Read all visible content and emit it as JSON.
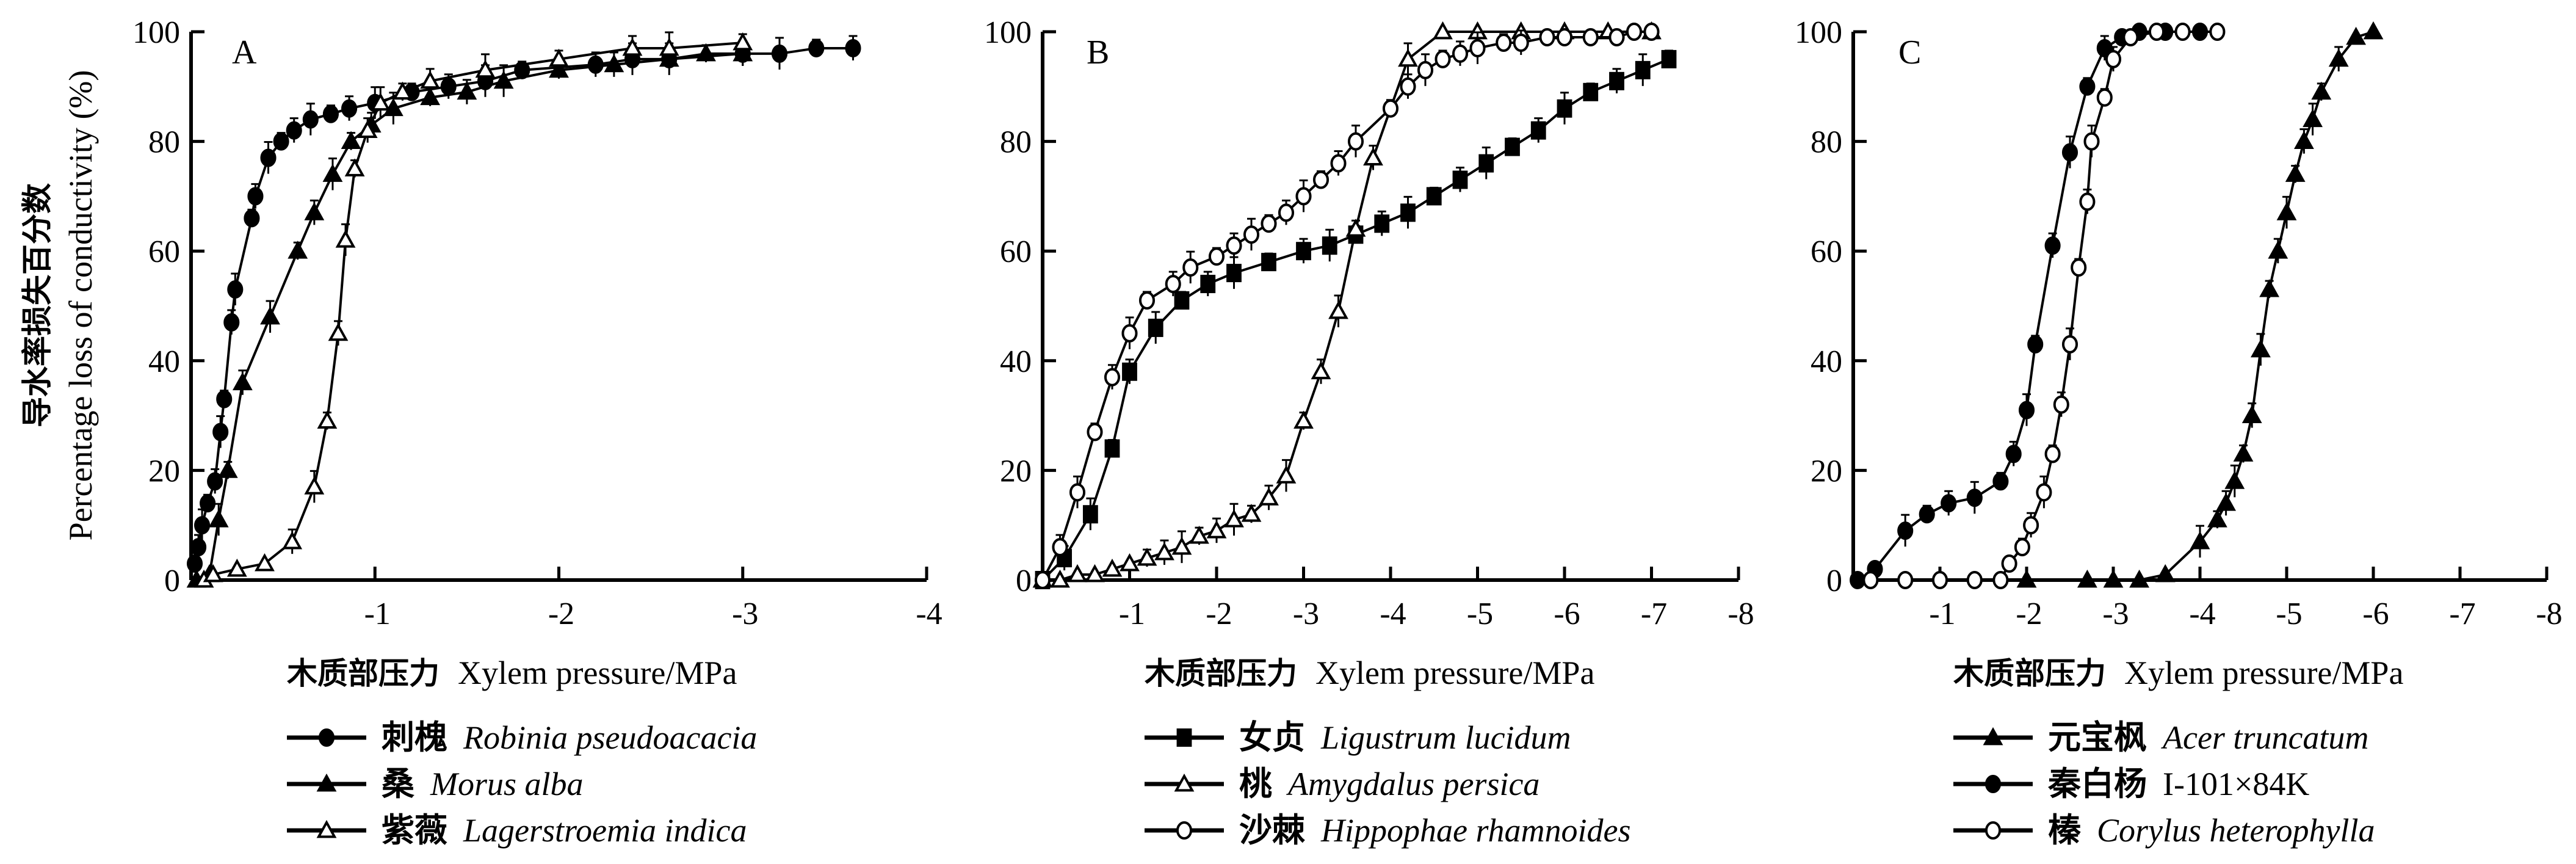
{
  "figure": {
    "ylabel_cn": "导水率损失百分数",
    "ylabel_en": "Percentage loss of conductivity (%)"
  },
  "chart_data": [
    {
      "type": "line",
      "panel": "A",
      "xlabel_cn": "木质部压力",
      "xlabel_en": "Xylem pressure/MPa",
      "ylabel": "Percentage loss of conductivity (%)",
      "xlim": [
        0,
        -4
      ],
      "ylim": [
        0,
        100
      ],
      "xticks": [
        "-1",
        "-2",
        "-3",
        "-4"
      ],
      "yticks": [
        "0",
        "20",
        "40",
        "60",
        "80",
        "100"
      ],
      "legend_position": "below",
      "series": [
        {
          "name_cn": "刺槐",
          "name": "Robinia pseudoacacia",
          "marker": "filled-circle",
          "italic": true,
          "x": [
            -0.02,
            -0.04,
            -0.06,
            -0.09,
            -0.13,
            -0.16,
            -0.18,
            -0.22,
            -0.24,
            -0.33,
            -0.35,
            -0.42,
            -0.49,
            -0.56,
            -0.65,
            -0.76,
            -0.86,
            -1.0,
            -1.2,
            -1.4,
            -1.6,
            -1.8,
            -2.2,
            -2.4,
            -2.6,
            -3.0,
            -3.2,
            -3.4,
            -3.6
          ],
          "y": [
            3,
            6,
            10,
            14,
            18,
            27,
            33,
            47,
            53,
            66,
            70,
            77,
            80,
            82,
            84,
            85,
            86,
            87,
            89,
            90,
            91,
            93,
            94,
            95,
            95,
            96,
            96,
            97,
            97
          ]
        },
        {
          "name_cn": "桑",
          "name": "Morus alba",
          "marker": "filled-triangle",
          "italic": true,
          "x": [
            -0.03,
            -0.1,
            -0.15,
            -0.2,
            -0.28,
            -0.43,
            -0.58,
            -0.67,
            -0.77,
            -0.87,
            -0.98,
            -1.1,
            -1.3,
            -1.5,
            -1.7,
            -2.0,
            -2.3,
            -2.6,
            -2.8,
            -3.0
          ],
          "y": [
            0,
            1,
            11,
            20,
            36,
            48,
            60,
            67,
            74,
            80,
            83,
            86,
            88,
            89,
            91,
            93,
            94,
            95,
            96,
            96
          ]
        },
        {
          "name_cn": "紫薇",
          "name": "Lagerstroemia indica",
          "marker": "open-triangle",
          "italic": true,
          "x": [
            -0.07,
            -0.12,
            -0.25,
            -0.4,
            -0.55,
            -0.67,
            -0.74,
            -0.8,
            -0.84,
            -0.89,
            -0.96,
            -1.03,
            -1.15,
            -1.3,
            -1.6,
            -2.0,
            -2.4,
            -2.6,
            -3.0
          ],
          "y": [
            0,
            1,
            2,
            3,
            7,
            17,
            29,
            45,
            62,
            75,
            82,
            87,
            89,
            91,
            93,
            95,
            97,
            97,
            98
          ]
        }
      ]
    },
    {
      "type": "line",
      "panel": "B",
      "xlabel_cn": "木质部压力",
      "xlabel_en": "Xylem pressure/MPa",
      "xlim": [
        0,
        -8
      ],
      "ylim": [
        0,
        100
      ],
      "xticks": [
        "-1",
        "-2",
        "-3",
        "-4",
        "-5",
        "-6",
        "-7",
        "-8"
      ],
      "yticks": [
        "0",
        "20",
        "40",
        "60",
        "80",
        "100"
      ],
      "legend_position": "below",
      "series": [
        {
          "name_cn": "女贞",
          "name": "Ligustrum lucidum",
          "marker": "filled-square",
          "italic": true,
          "x": [
            0,
            -0.25,
            -0.55,
            -0.8,
            -1.0,
            -1.3,
            -1.6,
            -1.9,
            -2.2,
            -2.6,
            -3.0,
            -3.3,
            -3.6,
            -3.9,
            -4.2,
            -4.5,
            -4.8,
            -5.1,
            -5.4,
            -5.7,
            -6.0,
            -6.3,
            -6.6,
            -6.9,
            -7.2
          ],
          "y": [
            0,
            4,
            12,
            24,
            38,
            46,
            51,
            54,
            56,
            58,
            60,
            61,
            63,
            65,
            67,
            70,
            73,
            76,
            79,
            82,
            86,
            89,
            91,
            93,
            95
          ]
        },
        {
          "name_cn": "桃",
          "name": "Amygdalus persica",
          "marker": "open-triangle",
          "italic": true,
          "x": [
            0,
            -0.2,
            -0.4,
            -0.6,
            -0.8,
            -1.0,
            -1.2,
            -1.4,
            -1.6,
            -1.8,
            -2.0,
            -2.2,
            -2.4,
            -2.6,
            -2.8,
            -3.0,
            -3.2,
            -3.4,
            -3.6,
            -3.8,
            -4.2,
            -4.6,
            -5.0,
            -5.5,
            -6.0,
            -6.5,
            -7.0
          ],
          "y": [
            0,
            0,
            1,
            1,
            2,
            3,
            4,
            5,
            6,
            8,
            9,
            11,
            12,
            15,
            19,
            29,
            38,
            49,
            64,
            77,
            95,
            100,
            100,
            100,
            100,
            100,
            100
          ]
        },
        {
          "name_cn": "沙棘",
          "name": "Hippophae rhamnoides",
          "marker": "open-circle",
          "italic": true,
          "x": [
            0,
            -0.2,
            -0.4,
            -0.6,
            -0.8,
            -1.0,
            -1.2,
            -1.5,
            -1.7,
            -2.0,
            -2.2,
            -2.4,
            -2.6,
            -2.8,
            -3.0,
            -3.2,
            -3.4,
            -3.6,
            -4.0,
            -4.2,
            -4.4,
            -4.6,
            -4.8,
            -5.0,
            -5.3,
            -5.5,
            -5.8,
            -6.0,
            -6.3,
            -6.6,
            -6.8,
            -7.0
          ],
          "y": [
            0,
            6,
            16,
            27,
            37,
            45,
            51,
            54,
            57,
            59,
            61,
            63,
            65,
            67,
            70,
            73,
            76,
            80,
            86,
            90,
            93,
            95,
            96,
            97,
            98,
            98,
            99,
            99,
            99,
            99,
            100,
            100
          ]
        }
      ]
    },
    {
      "type": "line",
      "panel": "C",
      "xlabel_cn": "木质部压力",
      "xlabel_en": "Xylem pressure/MPa",
      "xlim": [
        0,
        -8
      ],
      "ylim": [
        0,
        100
      ],
      "xticks": [
        "-1",
        "-2",
        "-3",
        "-4",
        "-5",
        "-6",
        "-7",
        "-8"
      ],
      "yticks": [
        "0",
        "20",
        "40",
        "60",
        "80",
        "100"
      ],
      "legend_position": "below",
      "series": [
        {
          "name_cn": "元宝枫",
          "name": "Acer truncatum",
          "marker": "filled-triangle",
          "italic": true,
          "x": [
            -2.0,
            -2.7,
            -3.0,
            -3.3,
            -3.6,
            -4.0,
            -4.2,
            -4.3,
            -4.4,
            -4.5,
            -4.6,
            -4.7,
            -4.8,
            -4.9,
            -5.0,
            -5.1,
            -5.2,
            -5.3,
            -5.4,
            -5.6,
            -5.8,
            -6.0
          ],
          "y": [
            0,
            0,
            0,
            0,
            1,
            7,
            11,
            14,
            18,
            23,
            30,
            42,
            53,
            60,
            67,
            74,
            80,
            84,
            89,
            95,
            99,
            100
          ]
        },
        {
          "name_cn": "秦白杨",
          "name": "I-101×84K",
          "marker": "filled-circle",
          "italic": false,
          "x": [
            -0.05,
            -0.25,
            -0.6,
            -0.85,
            -1.1,
            -1.4,
            -1.7,
            -1.85,
            -2.0,
            -2.1,
            -2.3,
            -2.5,
            -2.7,
            -2.9,
            -3.1,
            -3.3,
            -3.6,
            -4.0
          ],
          "y": [
            0,
            2,
            9,
            12,
            14,
            15,
            18,
            23,
            31,
            43,
            61,
            78,
            90,
            97,
            99,
            100,
            100,
            100
          ]
        },
        {
          "name_cn": "榛",
          "name": "Corylus heterophylla",
          "marker": "open-circle",
          "italic": true,
          "x": [
            -0.2,
            -0.6,
            -1.0,
            -1.4,
            -1.7,
            -1.8,
            -1.95,
            -2.05,
            -2.2,
            -2.3,
            -2.4,
            -2.5,
            -2.6,
            -2.7,
            -2.75,
            -2.9,
            -3.0,
            -3.2,
            -3.5,
            -3.8,
            -4.2
          ],
          "y": [
            0,
            0,
            0,
            0,
            0,
            3,
            6,
            10,
            16,
            23,
            32,
            43,
            57,
            69,
            80,
            88,
            95,
            99,
            100,
            100,
            100
          ]
        }
      ]
    }
  ]
}
